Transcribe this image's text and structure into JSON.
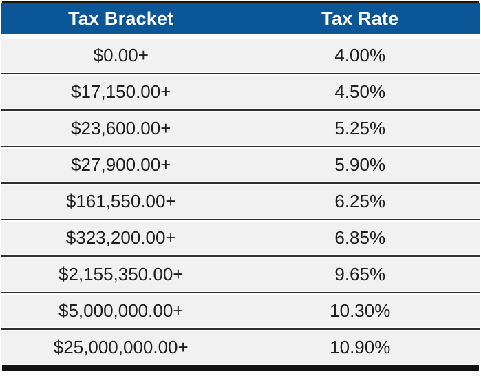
{
  "table": {
    "columns": [
      {
        "label": "Tax Bracket"
      },
      {
        "label": "Tax Rate"
      }
    ]
  },
  "chart_data": {
    "type": "table",
    "columns": [
      "Tax Bracket",
      "Tax Rate"
    ],
    "rows": [
      [
        "$0.00+",
        "4.00%"
      ],
      [
        "$17,150.00+",
        "4.50%"
      ],
      [
        "$23,600.00+",
        "5.25%"
      ],
      [
        "$27,900.00+",
        "5.90%"
      ],
      [
        "$161,550.00+",
        "6.25%"
      ],
      [
        "$323,200.00+",
        "6.85%"
      ],
      [
        "$2,155,350.00+",
        "9.65%"
      ],
      [
        "$5,000,000.00+",
        "10.30%"
      ],
      [
        "$25,000,000.00+",
        "10.90%"
      ]
    ],
    "brackets_numeric": [
      0,
      17150,
      23600,
      27900,
      161550,
      323200,
      2155350,
      5000000,
      25000000
    ],
    "rates_percent": [
      4.0,
      4.5,
      5.25,
      5.9,
      6.25,
      6.85,
      9.65,
      10.3,
      10.9
    ],
    "legend_position": "none",
    "grid": "horizontal-dividers"
  },
  "colors": {
    "header_bg": "#0B5697",
    "header_text": "#FFFFFF",
    "row_bg": "#F1F1F1",
    "row_text": "#1E1E1E",
    "divider": "#2E2E2E",
    "bar": "#121212"
  }
}
